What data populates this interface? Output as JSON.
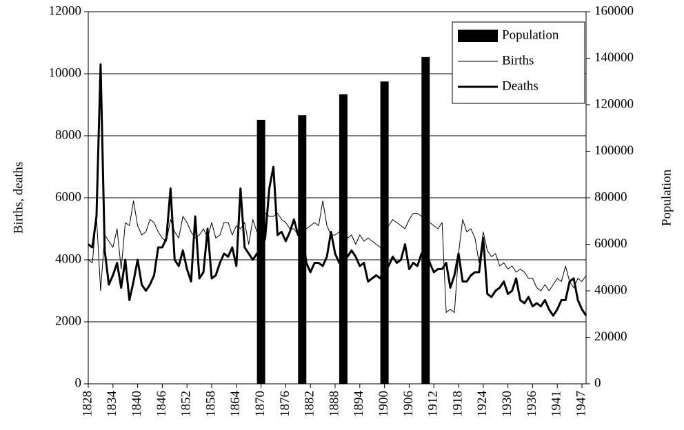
{
  "chart_data": {
    "type": "combo",
    "y_label": "Births, deaths",
    "y2_label": "Population",
    "ylim": [
      0,
      12000
    ],
    "yticks": [
      0,
      2000,
      4000,
      6000,
      8000,
      10000,
      12000
    ],
    "y2lim": [
      0,
      160000
    ],
    "y2ticks": [
      0,
      20000,
      40000,
      60000,
      80000,
      100000,
      120000,
      140000,
      160000
    ],
    "grid": true,
    "legend": "upper right",
    "categories": [
      "1828",
      null,
      null,
      null,
      null,
      null,
      "1834",
      null,
      null,
      null,
      null,
      null,
      "1840",
      null,
      null,
      null,
      null,
      null,
      "1846",
      null,
      null,
      null,
      null,
      null,
      "1852",
      null,
      null,
      null,
      null,
      null,
      "1858",
      null,
      null,
      null,
      null,
      null,
      "1864",
      null,
      null,
      null,
      null,
      null,
      "1870",
      null,
      null,
      null,
      null,
      null,
      "1876",
      null,
      null,
      null,
      null,
      null,
      "1882",
      null,
      null,
      null,
      null,
      null,
      "1888",
      null,
      null,
      null,
      null,
      null,
      "1894",
      null,
      null,
      null,
      null,
      null,
      "1900",
      null,
      null,
      null,
      null,
      null,
      "1906",
      null,
      null,
      null,
      null,
      null,
      "1912",
      null,
      null,
      null,
      null,
      null,
      "1918",
      null,
      null,
      null,
      null,
      null,
      "1924",
      null,
      null,
      null,
      null,
      null,
      "1930",
      null,
      null,
      null,
      null,
      null,
      "1936",
      null,
      null,
      null,
      null,
      null,
      "1941",
      null,
      null,
      null,
      null,
      null,
      "1947",
      null
    ],
    "series": [
      {
        "name": "Population",
        "type": "bar",
        "axis": "y2",
        "color": "#000000",
        "values": [
          null,
          null,
          null,
          null,
          null,
          null,
          null,
          null,
          null,
          null,
          null,
          null,
          null,
          null,
          null,
          null,
          null,
          null,
          null,
          null,
          null,
          null,
          null,
          null,
          null,
          null,
          null,
          null,
          null,
          null,
          null,
          null,
          null,
          null,
          null,
          null,
          null,
          null,
          null,
          null,
          null,
          null,
          113500,
          null,
          null,
          null,
          null,
          null,
          null,
          null,
          null,
          null,
          115500,
          null,
          null,
          null,
          null,
          null,
          null,
          null,
          null,
          null,
          124500,
          null,
          null,
          null,
          null,
          null,
          null,
          null,
          null,
          null,
          130000,
          null,
          null,
          null,
          null,
          null,
          null,
          null,
          null,
          null,
          140500,
          null,
          null,
          null,
          null,
          null,
          null,
          null,
          null,
          null,
          null,
          null,
          null,
          null,
          null,
          null,
          null,
          null,
          null,
          null,
          null,
          null,
          null,
          null,
          null,
          null,
          null,
          null,
          null,
          null,
          null,
          null,
          null,
          null,
          null,
          null,
          null,
          null,
          null,
          null
        ]
      },
      {
        "name": "Births",
        "type": "line",
        "color": "#000000",
        "line_width": 1,
        "values": [
          4000,
          3900,
          5400,
          3000,
          4800,
          4600,
          4400,
          5000,
          3700,
          5200,
          5100,
          5900,
          5100,
          4800,
          4900,
          5300,
          5200,
          4900,
          4700,
          4600,
          5300,
          4900,
          4700,
          5400,
          5200,
          4900,
          4700,
          4800,
          5000,
          4700,
          5200,
          4700,
          4800,
          5200,
          5200,
          4800,
          5100,
          5000,
          5200,
          4500,
          5300,
          4900,
          5500,
          5500,
          5400,
          5400,
          5500,
          5300,
          5200,
          5000,
          5000,
          4800,
          4900,
          5000,
          5100,
          5200,
          5100,
          5900,
          5100,
          4800,
          4800,
          4900,
          4800,
          4700,
          4800,
          4500,
          4800,
          4600,
          4700,
          4600,
          4500,
          4400,
          4700,
          5100,
          5300,
          5200,
          5100,
          5000,
          5300,
          5500,
          5500,
          5400,
          5300,
          5200,
          5100,
          5000,
          5200,
          2300,
          2400,
          2300,
          4200,
          5300,
          4900,
          5000,
          4700,
          3900,
          4900,
          4300,
          4100,
          4200,
          3800,
          3900,
          3700,
          3800,
          3600,
          3700,
          3600,
          3400,
          3400,
          3100,
          3000,
          3200,
          3000,
          3200,
          3400,
          3300,
          3800,
          3300,
          3100,
          3400,
          3300,
          3500
        ]
      },
      {
        "name": "Deaths",
        "type": "line",
        "color": "#000000",
        "line_width": 3,
        "values": [
          4500,
          4400,
          5400,
          10300,
          4300,
          3200,
          3500,
          3900,
          3100,
          4000,
          2700,
          3300,
          4000,
          3200,
          3000,
          3200,
          3500,
          4400,
          4400,
          4700,
          6300,
          4000,
          3800,
          4300,
          3700,
          3300,
          5400,
          3400,
          3600,
          5000,
          3400,
          3500,
          3900,
          4200,
          4100,
          4400,
          3800,
          6300,
          4400,
          4200,
          4000,
          4200,
          4300,
          4700,
          6300,
          7000,
          4800,
          4900,
          4600,
          4900,
          5300,
          4800,
          4900,
          3900,
          3600,
          3900,
          3900,
          3800,
          4100,
          4900,
          4200,
          3900,
          4000,
          4100,
          4300,
          4100,
          3800,
          3900,
          3300,
          3400,
          3500,
          3400,
          3700,
          3800,
          4100,
          3900,
          4000,
          4500,
          3700,
          3900,
          3800,
          4200,
          4300,
          3900,
          3600,
          3700,
          3700,
          3900,
          3100,
          3500,
          4200,
          3300,
          3300,
          3500,
          3600,
          3600,
          4700,
          2900,
          2800,
          3000,
          3100,
          3300,
          2900,
          3000,
          3400,
          2700,
          2600,
          2800,
          2500,
          2600,
          2500,
          2700,
          2400,
          2200,
          2400,
          2700,
          2700,
          3300,
          3400,
          2700,
          2400,
          2200
        ]
      }
    ]
  }
}
